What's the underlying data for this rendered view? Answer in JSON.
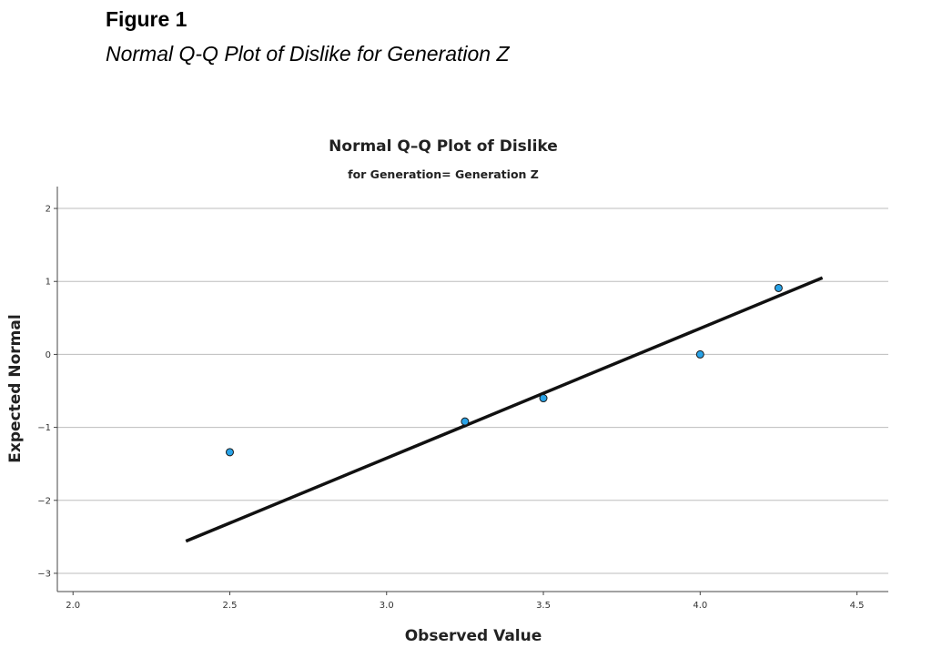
{
  "figure": {
    "label": "Figure 1",
    "caption": "Normal Q-Q Plot of Dislike for Generation Z"
  },
  "chart_data": {
    "type": "scatter",
    "title": "Normal Q–Q Plot of Dislike",
    "subtitle": "for Generation= Generation Z",
    "xlabel": "Observed Value",
    "ylabel": "Expected Normal",
    "xlim": [
      1.95,
      4.6
    ],
    "ylim": [
      -3.25,
      2.3
    ],
    "x_ticks": [
      2.0,
      2.5,
      3.0,
      3.5,
      4.0,
      4.5
    ],
    "x_tick_labels": [
      "2.0",
      "2.5",
      "3.0",
      "3.5",
      "4.0",
      "4.5"
    ],
    "y_ticks": [
      2,
      1,
      0,
      -1,
      -2,
      -3
    ],
    "y_tick_labels": [
      "2",
      "1",
      "0",
      "−1",
      "−2",
      "−3"
    ],
    "grid": "horizontal",
    "points": [
      {
        "x": 2.5,
        "y": -1.34
      },
      {
        "x": 3.25,
        "y": -0.92
      },
      {
        "x": 3.5,
        "y": -0.6
      },
      {
        "x": 4.0,
        "y": 0.0
      },
      {
        "x": 4.25,
        "y": 0.91
      }
    ],
    "reference_line": {
      "x1": 2.36,
      "y1": -2.56,
      "x2": 4.39,
      "y2": 1.05
    },
    "colors": {
      "point_fill": "#29a3e8",
      "point_stroke": "#1a1a1a",
      "line": "#111111",
      "grid": "#bdbdbd",
      "axis": "#444444"
    }
  }
}
